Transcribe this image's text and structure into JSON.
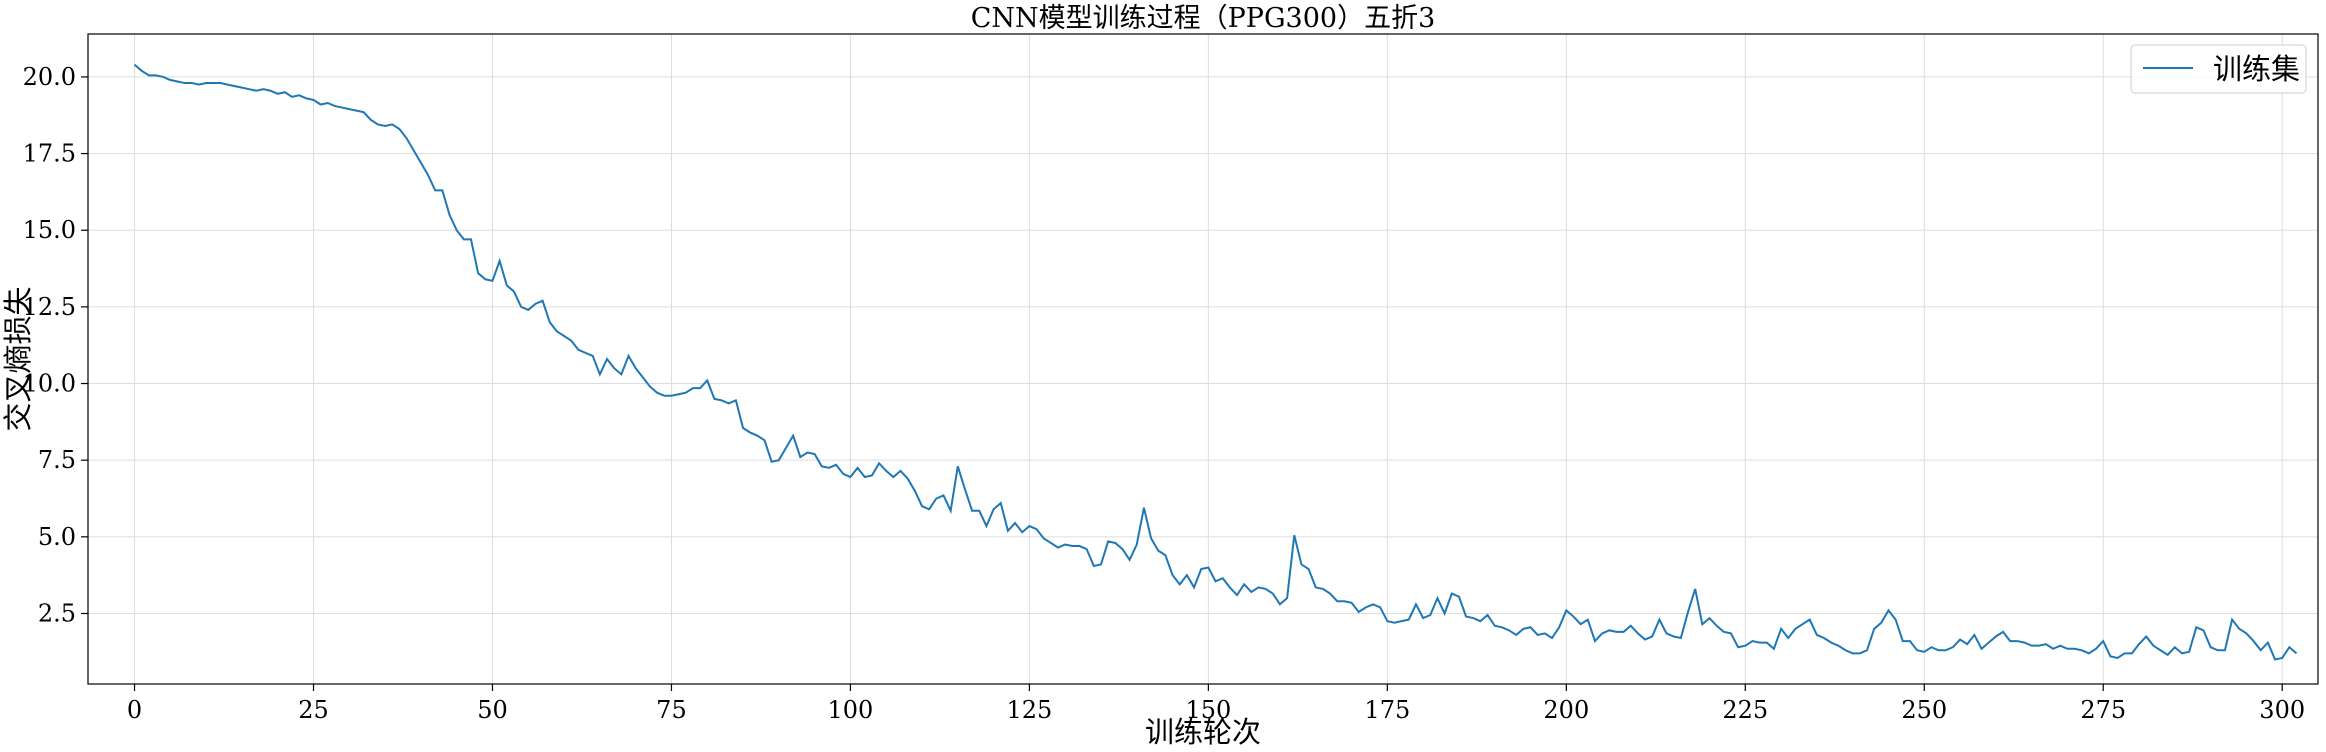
{
  "chart_data": {
    "type": "line",
    "title": "CNN模型训练过程（PPG300）五折3",
    "xlabel": "训练轮次",
    "ylabel": "交叉熵损失",
    "xlim": [
      -6.5,
      305
    ],
    "ylim": [
      0.2,
      21.4
    ],
    "xticks": [
      0,
      25,
      50,
      75,
      100,
      125,
      150,
      175,
      200,
      225,
      250,
      275,
      300
    ],
    "yticks": [
      2.5,
      5.0,
      7.5,
      10.0,
      12.5,
      15.0,
      17.5,
      20.0
    ],
    "grid": true,
    "legend_position": "top-right",
    "colors": {
      "series": "#1f77b4",
      "grid": "#dddddd"
    },
    "series": [
      {
        "name": "训练集",
        "x_start": 0,
        "x_step": 1,
        "values": [
          20.4,
          20.2,
          20.05,
          20.05,
          20.0,
          19.9,
          19.85,
          19.8,
          19.8,
          19.75,
          19.8,
          19.8,
          19.8,
          19.75,
          19.7,
          19.65,
          19.6,
          19.55,
          19.6,
          19.55,
          19.45,
          19.5,
          19.35,
          19.4,
          19.3,
          19.25,
          19.1,
          19.15,
          19.05,
          19.0,
          18.95,
          18.9,
          18.85,
          18.6,
          18.45,
          18.4,
          18.45,
          18.3,
          18.0,
          17.6,
          17.2,
          16.8,
          16.3,
          16.3,
          15.5,
          15.0,
          14.7,
          14.7,
          13.6,
          13.4,
          13.35,
          14.0,
          13.2,
          13.0,
          12.5,
          12.4,
          12.6,
          12.7,
          12.0,
          11.7,
          11.55,
          11.4,
          11.1,
          11.0,
          10.9,
          10.3,
          10.8,
          10.5,
          10.3,
          10.9,
          10.5,
          10.2,
          9.9,
          9.7,
          9.6,
          9.6,
          9.65,
          9.7,
          9.85,
          9.85,
          10.1,
          9.5,
          9.45,
          9.35,
          9.45,
          8.55,
          8.4,
          8.3,
          8.15,
          7.45,
          7.5,
          7.9,
          8.3,
          7.6,
          7.75,
          7.7,
          7.3,
          7.25,
          7.35,
          7.05,
          6.95,
          7.25,
          6.95,
          7.0,
          7.4,
          7.15,
          6.95,
          7.15,
          6.9,
          6.5,
          6.0,
          5.9,
          6.25,
          6.35,
          5.85,
          7.3,
          6.55,
          5.85,
          5.85,
          5.35,
          5.9,
          6.1,
          5.2,
          5.45,
          5.15,
          5.35,
          5.25,
          4.95,
          4.8,
          4.65,
          4.75,
          4.7,
          4.7,
          4.6,
          4.05,
          4.1,
          4.85,
          4.8,
          4.6,
          4.25,
          4.75,
          5.95,
          4.95,
          4.55,
          4.4,
          3.75,
          3.45,
          3.75,
          3.35,
          3.95,
          4.0,
          3.55,
          3.65,
          3.35,
          3.1,
          3.45,
          3.2,
          3.35,
          3.3,
          3.15,
          2.8,
          3.0,
          5.05,
          4.1,
          3.95,
          3.35,
          3.3,
          3.15,
          2.9,
          2.9,
          2.85,
          2.55,
          2.7,
          2.8,
          2.7,
          2.25,
          2.2,
          2.25,
          2.3,
          2.8,
          2.35,
          2.45,
          3.0,
          2.5,
          3.15,
          3.05,
          2.4,
          2.35,
          2.25,
          2.45,
          2.1,
          2.05,
          1.95,
          1.8,
          2.0,
          2.05,
          1.8,
          1.85,
          1.7,
          2.05,
          2.6,
          2.4,
          2.15,
          2.3,
          1.6,
          1.85,
          1.95,
          1.9,
          1.9,
          2.1,
          1.85,
          1.65,
          1.75,
          2.3,
          1.85,
          1.75,
          1.7,
          2.55,
          3.3,
          2.15,
          2.35,
          2.1,
          1.9,
          1.85,
          1.4,
          1.45,
          1.6,
          1.55,
          1.55,
          1.35,
          2.0,
          1.7,
          2.0,
          2.15,
          2.3,
          1.8,
          1.7,
          1.55,
          1.45,
          1.3,
          1.2,
          1.2,
          1.3,
          2.0,
          2.2,
          2.6,
          2.3,
          1.6,
          1.6,
          1.3,
          1.25,
          1.4,
          1.3,
          1.3,
          1.4,
          1.65,
          1.5,
          1.8,
          1.35,
          1.55,
          1.75,
          1.9,
          1.6,
          1.6,
          1.55,
          1.45,
          1.45,
          1.5,
          1.35,
          1.45,
          1.35,
          1.35,
          1.3,
          1.2,
          1.35,
          1.6,
          1.1,
          1.05,
          1.2,
          1.2,
          1.5,
          1.75,
          1.45,
          1.3,
          1.15,
          1.4,
          1.2,
          1.25,
          2.05,
          1.95,
          1.4,
          1.3,
          1.3,
          2.3,
          2.0,
          1.85,
          1.6,
          1.3,
          1.55,
          1.0,
          1.05,
          1.4,
          1.2
        ]
      }
    ]
  }
}
